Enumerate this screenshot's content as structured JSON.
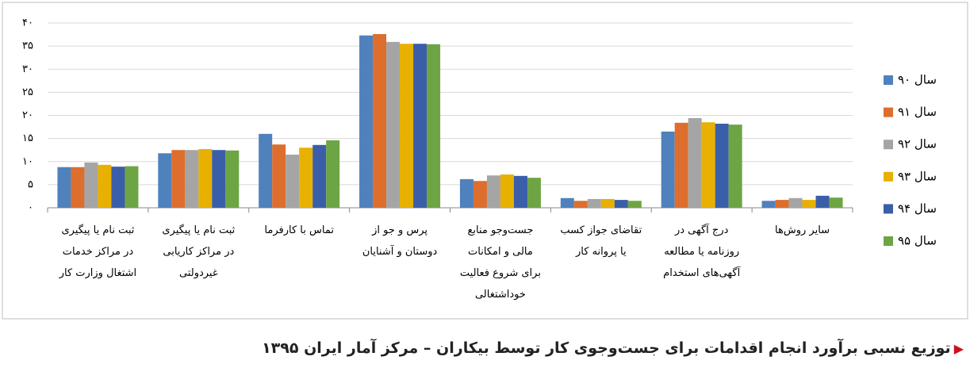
{
  "chart_data": {
    "type": "bar",
    "title": "توزیع نسبی برآورد انجام اقدامات برای جست‌وجوی کار توسط بیکاران – مرکز آمار ایران ۱۳۹۵",
    "categories": [
      "ثبت نام یا پیگیری\nدر مراکز خدمات\nاشتغال وزارت کار",
      "ثبت نام یا پیگیری\nدر مراکز کاریابی\nغیردولتی",
      "تماس با کارفرما",
      "پرس و جو از\nدوستان و آشنایان",
      "جست‌وجو منابع\nمالی و امکانات\nبرای شروع فعالیت\nخوداشتغالی",
      "تقاضای جواز کسب\nیا پروانه کار",
      "درج آگهی در\nروزنامه یا مطالعه\nآگهی‌های استخدام",
      "سایر روش‌ها"
    ],
    "series": [
      {
        "name": "سال ۹۰",
        "color": "#4f81bd",
        "values": [
          8.8,
          11.8,
          16.0,
          37.3,
          6.2,
          2.1,
          16.5,
          1.5
        ]
      },
      {
        "name": "سال ۹۱",
        "color": "#dd6e2e",
        "values": [
          8.8,
          12.5,
          13.7,
          37.6,
          5.8,
          1.5,
          18.4,
          1.7
        ]
      },
      {
        "name": "سال ۹۲",
        "color": "#a5a5a5",
        "values": [
          9.8,
          12.5,
          11.5,
          35.9,
          7.0,
          1.9,
          19.4,
          2.1
        ]
      },
      {
        "name": "سال ۹۳",
        "color": "#e8b000",
        "values": [
          9.3,
          12.7,
          13.0,
          35.5,
          7.2,
          1.9,
          18.5,
          1.7
        ]
      },
      {
        "name": "سال ۹۴",
        "color": "#3a5ea8",
        "values": [
          8.9,
          12.5,
          13.6,
          35.5,
          6.9,
          1.7,
          18.2,
          2.6
        ]
      },
      {
        "name": "سال ۹۵",
        "color": "#6ea544",
        "values": [
          9.0,
          12.4,
          14.6,
          35.4,
          6.5,
          1.5,
          18.0,
          2.2
        ]
      }
    ],
    "ylim": [
      0,
      40
    ],
    "yticks": [
      {
        "value": 0,
        "label": "۰"
      },
      {
        "value": 5,
        "label": "۵"
      },
      {
        "value": 10,
        "label": "۱۰"
      },
      {
        "value": 15,
        "label": "۱۵"
      },
      {
        "value": 20,
        "label": "۲۰"
      },
      {
        "value": 25,
        "label": "۲۵"
      },
      {
        "value": 30,
        "label": "۳۰"
      },
      {
        "value": 35,
        "label": "۳۵"
      },
      {
        "value": 40,
        "label": "۴۰"
      }
    ],
    "grid": true,
    "legend": "right"
  }
}
